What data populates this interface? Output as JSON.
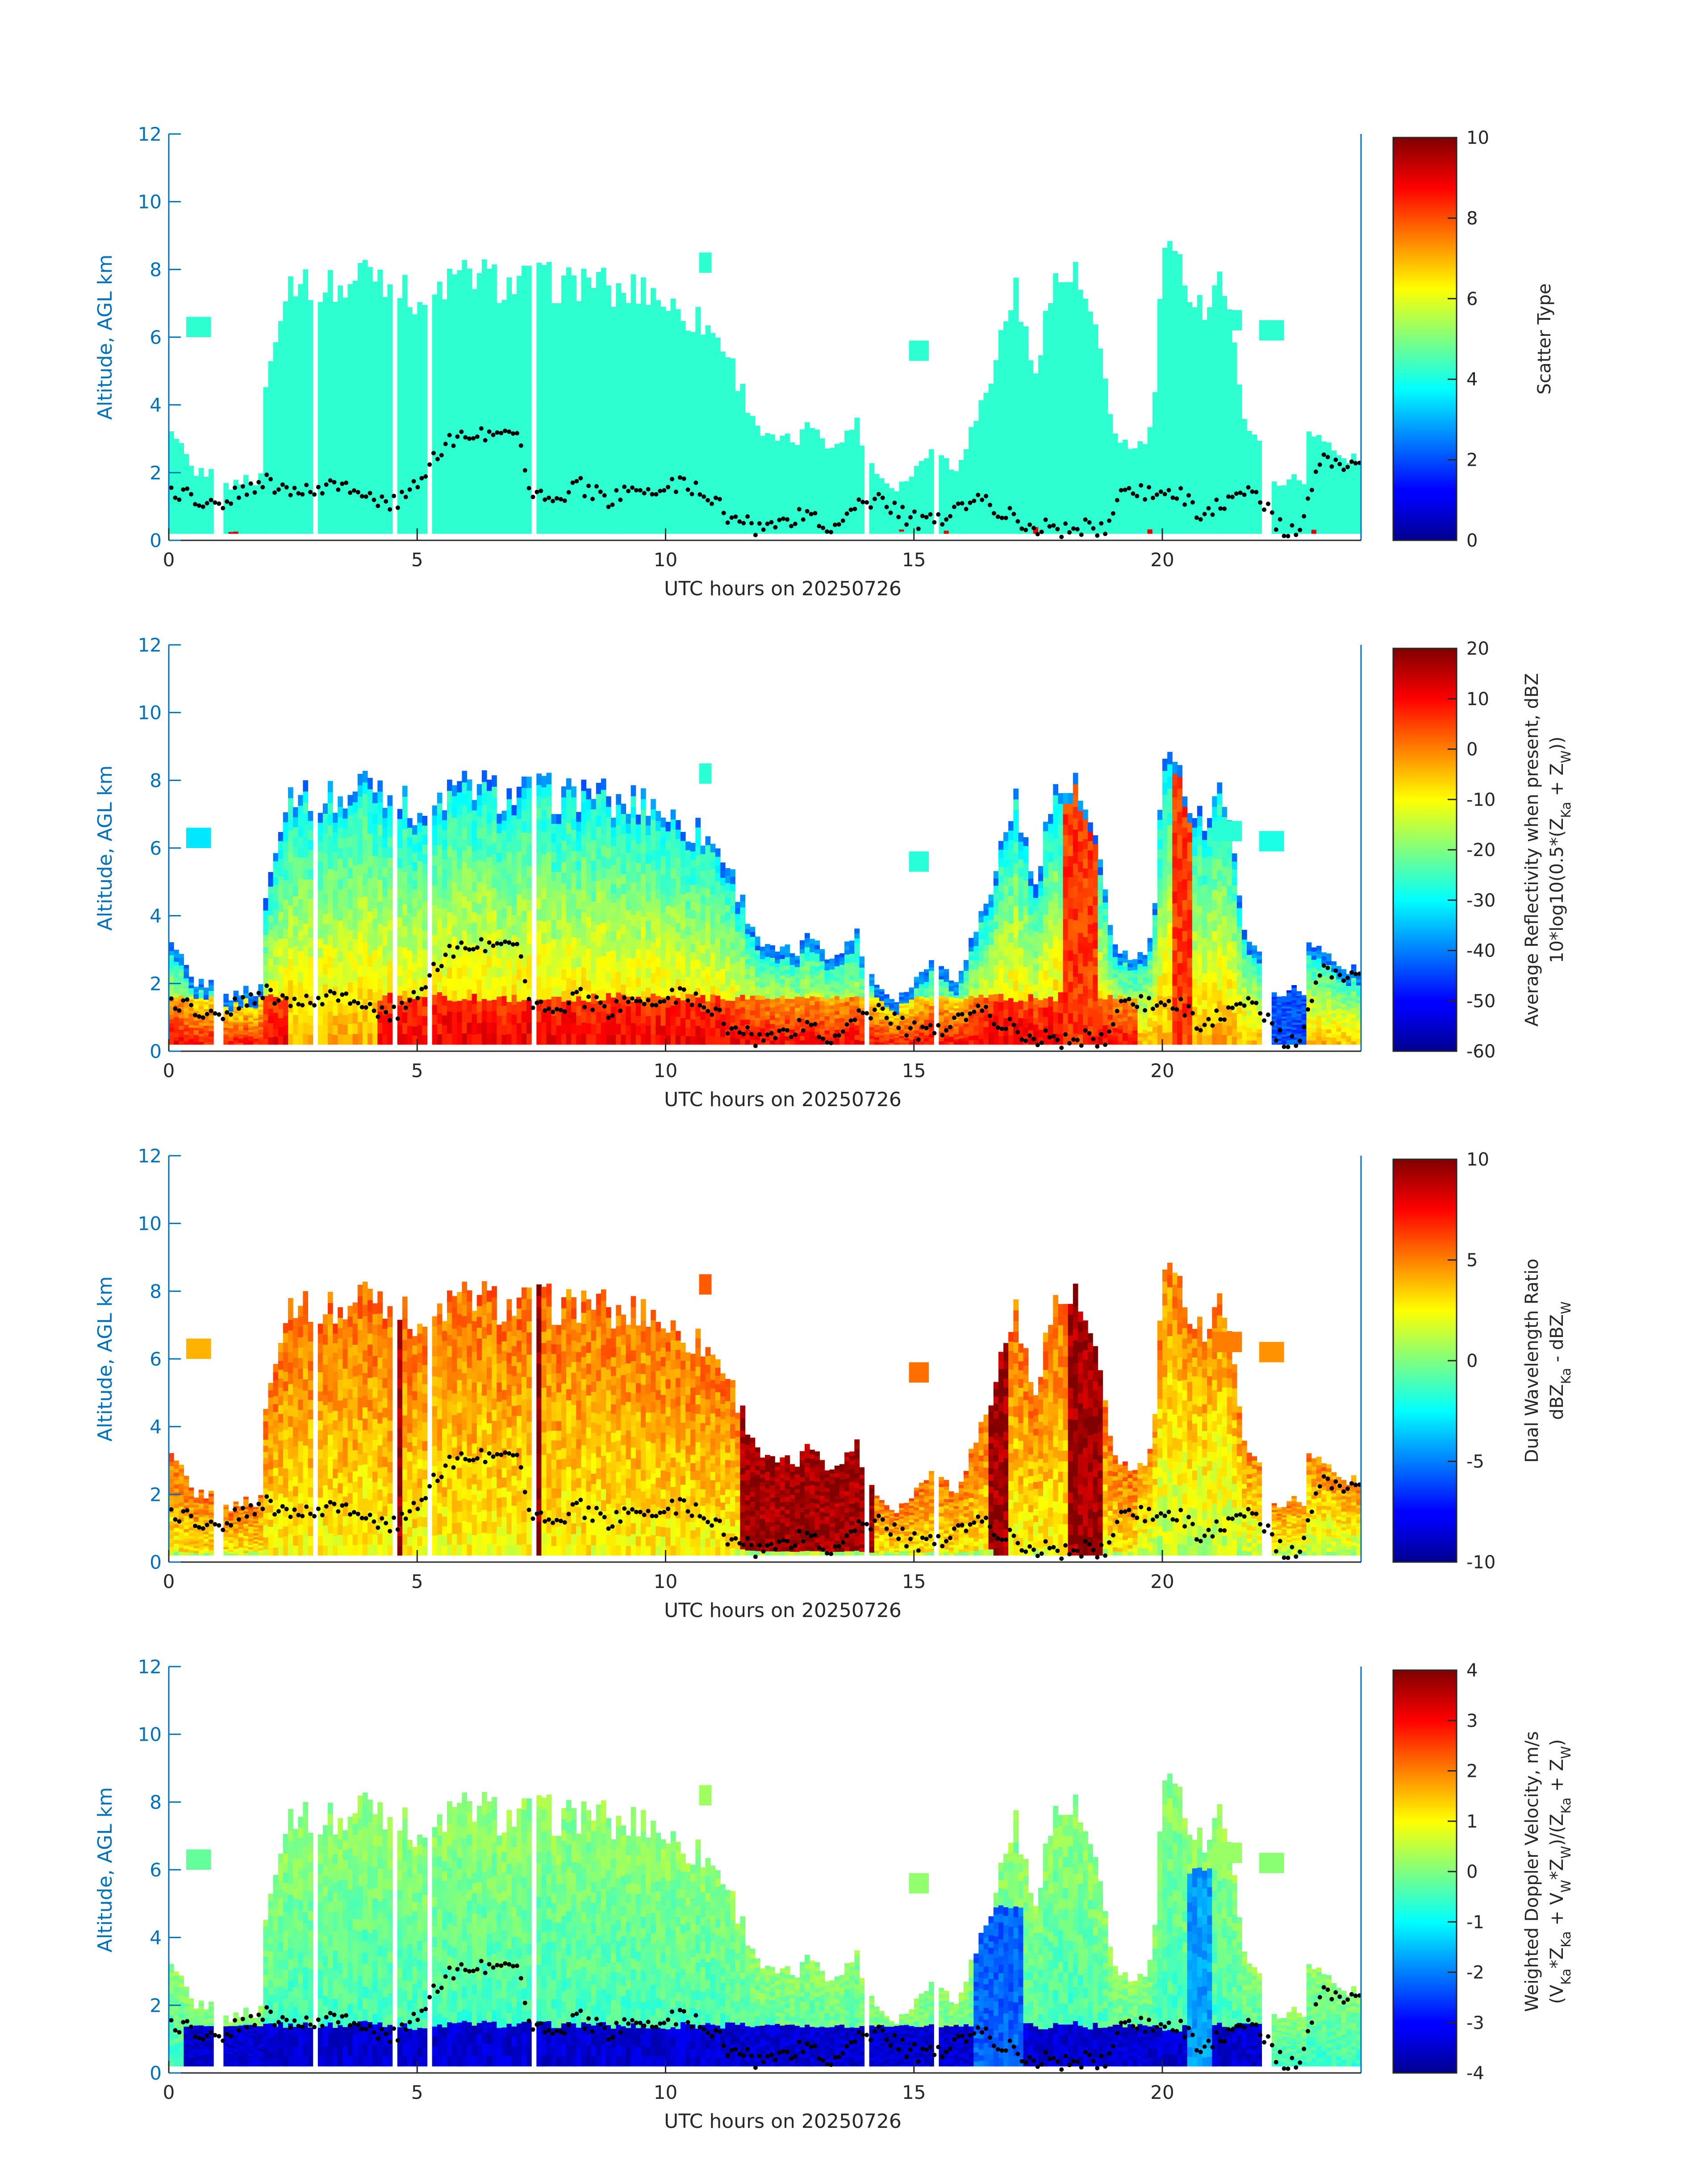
{
  "figure": {
    "axis_color": "#0072bd",
    "colormap": "jet",
    "point_color": "#000000",
    "cloud_base_label": ""
  },
  "chart_data": [
    {
      "type": "heatmap",
      "title": "",
      "xlabel": "UTC hours on 20250726",
      "ylabel": "Altitude, AGL km",
      "xlim": [
        0,
        24
      ],
      "ylim": [
        0,
        12
      ],
      "xticks": [
        0,
        5,
        10,
        15,
        20
      ],
      "yticks": [
        0,
        2,
        4,
        6,
        8,
        10,
        12
      ],
      "grid": false,
      "field": "scatter_type",
      "colorbar": {
        "label_lines": [
          "Scatter Type"
        ],
        "range": [
          0,
          10
        ],
        "ticks": [
          0,
          2,
          4,
          6,
          8,
          10
        ]
      }
    },
    {
      "type": "heatmap",
      "title": "",
      "xlabel": "UTC hours on 20250726",
      "ylabel": "Altitude, AGL km",
      "xlim": [
        0,
        24
      ],
      "ylim": [
        0,
        12
      ],
      "xticks": [
        0,
        5,
        10,
        15,
        20
      ],
      "yticks": [
        0,
        2,
        4,
        6,
        8,
        10,
        12
      ],
      "grid": false,
      "field": "reflectivity",
      "colorbar": {
        "label_lines": [
          "Average Reflectivity when present, dBZ",
          "10*log10(0.5*(Z_Ka + Z_W))"
        ],
        "range": [
          -60,
          20
        ],
        "ticks": [
          -60,
          -50,
          -40,
          -30,
          -20,
          -10,
          0,
          10,
          20
        ]
      }
    },
    {
      "type": "heatmap",
      "title": "",
      "xlabel": "UTC hours on 20250726",
      "ylabel": "Altitude, AGL km",
      "xlim": [
        0,
        24
      ],
      "ylim": [
        0,
        12
      ],
      "xticks": [
        0,
        5,
        10,
        15,
        20
      ],
      "yticks": [
        0,
        2,
        4,
        6,
        8,
        10,
        12
      ],
      "grid": false,
      "field": "dwr",
      "colorbar": {
        "label_lines": [
          "Dual Wavelength Ratio",
          "dBZ_Ka - dBZ_W"
        ],
        "range": [
          -10,
          10
        ],
        "ticks": [
          -10,
          -5,
          0,
          5,
          10
        ]
      }
    },
    {
      "type": "heatmap",
      "title": "",
      "xlabel": "UTC hours on 20250726",
      "ylabel": "Altitude, AGL km",
      "xlim": [
        0,
        24
      ],
      "ylim": [
        0,
        12
      ],
      "xticks": [
        0,
        5,
        10,
        15,
        20
      ],
      "yticks": [
        0,
        2,
        4,
        6,
        8,
        10,
        12
      ],
      "grid": false,
      "field": "velocity",
      "colorbar": {
        "label_lines": [
          "Weighted Doppler Velocity, m/s",
          "(V_Ka*Z_Ka + V_W*Z_W)/(Z_Ka + Z_W)"
        ],
        "range": [
          -4,
          4
        ],
        "ticks": [
          -4,
          -3,
          -2,
          -1,
          0,
          1,
          2,
          3,
          4
        ]
      }
    }
  ]
}
